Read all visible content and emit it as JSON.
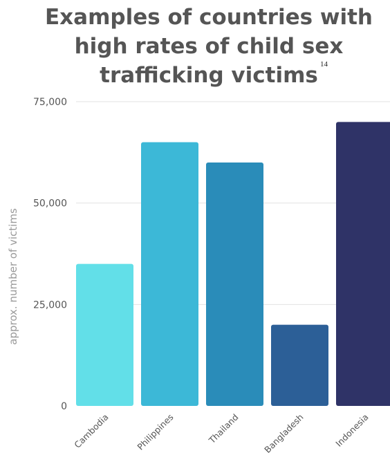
{
  "chart_data": {
    "type": "bar",
    "title_lines": [
      "Examples of countries with",
      "high rates of child sex",
      "trafficking victims"
    ],
    "title_footnote": "14",
    "ylabel": "approx. number of victims",
    "xlabel": "",
    "ylim": [
      0,
      75000
    ],
    "yticks": [
      0,
      25000,
      50000,
      75000
    ],
    "ytick_labels": [
      "0",
      "25,000",
      "50,000",
      "75,000"
    ],
    "grid": true,
    "categories": [
      "Cambodia",
      "Philippines",
      "Thailand",
      "Bangladesh",
      "Indonesia"
    ],
    "values": [
      35000,
      65000,
      60000,
      20000,
      70000
    ],
    "colors": [
      "#62dfe8",
      "#3cb8d7",
      "#2a8cb9",
      "#2c5f97",
      "#2f3367"
    ]
  }
}
